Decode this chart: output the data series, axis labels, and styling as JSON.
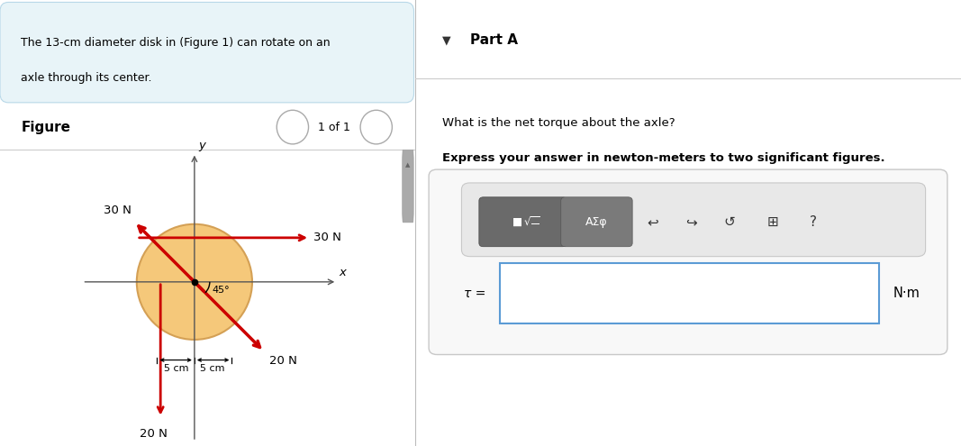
{
  "fig_width": 10.67,
  "fig_height": 4.95,
  "dpi": 100,
  "disk_color": "#F5C87A",
  "disk_edge_color": "#D4A055",
  "arrow_color": "#CC0000",
  "axis_color": "#555555",
  "text_color": "#000000",
  "background_color": "#FFFFFF",
  "info_box_color": "#E8F4F8",
  "info_box_border": "#B8D8E8",
  "info_text_line1": "The 13-cm diameter disk in (Figure 1) can rotate on an",
  "info_text_line2": "axle through its center.",
  "figure_label": "Figure",
  "nav_text": "1 of 1",
  "part_a_title": "Part A",
  "question_text": "What is the net torque about the axle?",
  "bold_text": "Express your answer in newton-meters to two significant figures.",
  "tau_label": "τ =",
  "units_label": "N·m",
  "force_30N_h_label": "30 N",
  "force_30N_d_label": "30 N",
  "force_20N_left_label": "20 N",
  "force_20N_d_label": "20 N",
  "angle_label": "45°",
  "dim_label_left": "5 cm",
  "dim_label_right": "5 cm",
  "y_label": "y",
  "x_label": "x",
  "scrollbar_color": "#BBBBBB",
  "panel_divider_color": "#CCCCCC",
  "right_bg_color": "#F2F2F2",
  "toolbar_bg": "#EBEBEB",
  "btn1_color": "#6A6A6A",
  "btn2_color": "#7A7A7A",
  "input_border_color": "#5B9BD5",
  "input_bg": "#FFFFFF",
  "outer_box_border": "#C8C8C8"
}
